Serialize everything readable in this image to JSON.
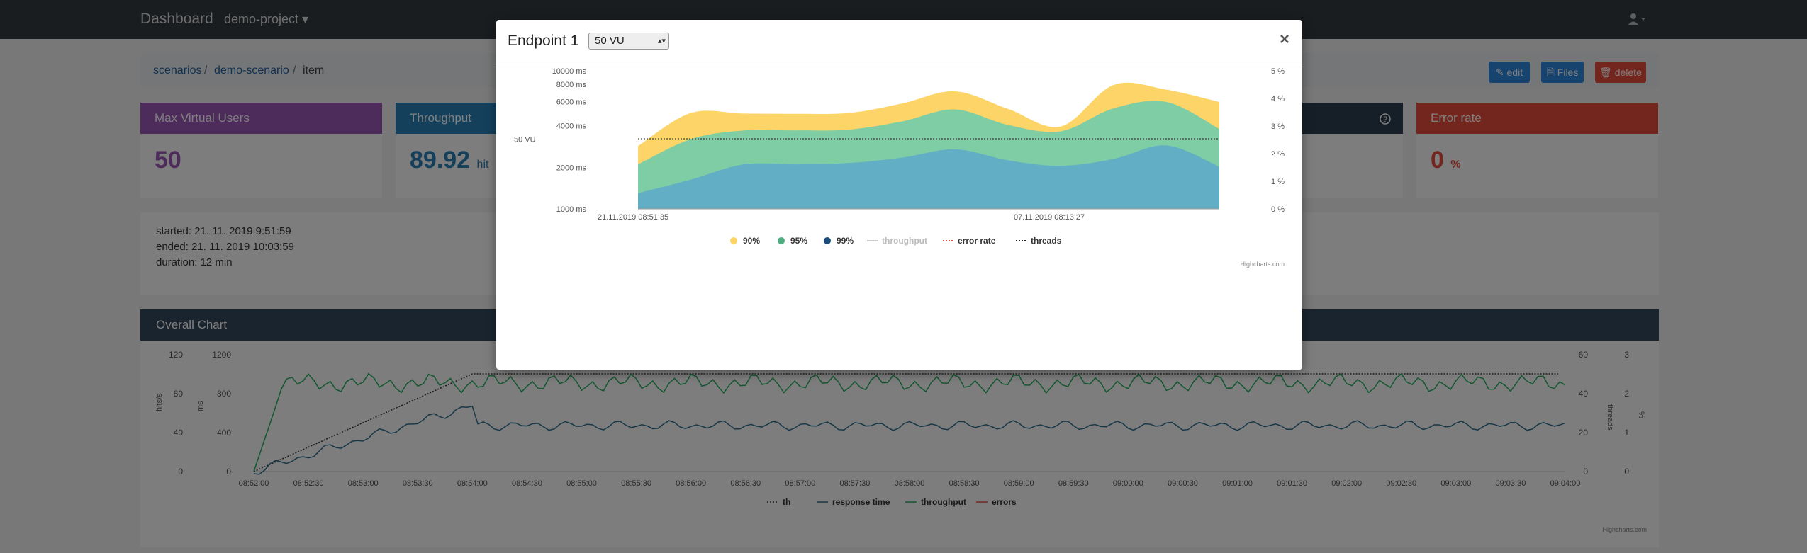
{
  "navbar": {
    "brand": "Dashboard",
    "project": "demo-project ▾",
    "user_icon": "user-icon"
  },
  "breadcrumb": {
    "items": [
      "scenarios",
      "demo-scenario",
      "item"
    ],
    "separator": "/"
  },
  "actions": {
    "edit": "✎ edit",
    "files": "🗎 Files",
    "delete": "🗑 delete"
  },
  "stats": {
    "max_vu": {
      "label": "Max Virtual Users",
      "value": "50",
      "color": "#9b59b6"
    },
    "throughput": {
      "label": "Throughput",
      "value": "89.92",
      "unit": "hit",
      "color": "#2980b9"
    },
    "error_rate": {
      "label": "Error rate",
      "value": "0",
      "unit": "%",
      "color": "#e74c3c"
    }
  },
  "info": {
    "started": "started:  21. 11. 2019 9:51:59",
    "ended": "ended:  21. 11. 2019 10:03:59",
    "duration": "duration:  12 min"
  },
  "overall": {
    "title": "Overall Chart",
    "legend": [
      "th",
      "response time",
      "throughput",
      "errors"
    ],
    "time_labels": [
      "08:52:00",
      "08:52:30",
      "08:53:00",
      "08:53:30",
      "08:54:00",
      "08:54:30",
      "08:55:00",
      "08:55:30",
      "08:56:00",
      "08:56:30",
      "08:57:00",
      "08:57:30",
      "08:58:00",
      "08:58:30",
      "08:59:00",
      "08:59:30",
      "09:00:00",
      "09:00:30",
      "09:01:00",
      "09:01:30",
      "09:02:00",
      "09:02:30",
      "09:03:00",
      "09:03:30",
      "09:04:00"
    ],
    "hits_ticks": [
      "120",
      "80",
      "40",
      "0"
    ],
    "ms_ticks": [
      "1200",
      "800",
      "400",
      "0"
    ],
    "threads_ticks": [
      "60",
      "40",
      "20",
      "0"
    ],
    "pct_ticks": [
      "3",
      "2",
      "1",
      "0"
    ],
    "axis_hits": "hits/s",
    "axis_ms": "ms",
    "axis_threads": "threads",
    "axis_pct": "%",
    "credit": "Highcharts.com"
  },
  "modal": {
    "title": "Endpoint 1",
    "select_value": "50 VU",
    "close": "×",
    "credit": "Highcharts.com"
  },
  "chart_data": {
    "type": "area",
    "title": "",
    "y_left_ticks": [
      "10000 ms",
      "8000 ms",
      "6000 ms",
      "4000 ms",
      "2000 ms",
      "1000 ms"
    ],
    "y_right_ticks": [
      "5 %",
      "4 %",
      "3 %",
      "2 %",
      "1 %",
      "0 %"
    ],
    "x_tick_labels": [
      "21.11.2019 08:51:35",
      "07.11.2019 08:13:27"
    ],
    "plotline_label": "50 VU",
    "ylim_ms": [
      1000,
      10000
    ],
    "y_scale": "log",
    "legend": [
      "90%",
      "95%",
      "99%",
      "throughput",
      "error rate",
      "threads"
    ],
    "series": [
      {
        "name": "90%",
        "color": "#fdd467",
        "values": [
          2850,
          4950,
          4900,
          4880,
          4950,
          5800,
          7100,
          5300,
          3950,
          7900,
          7300,
          5950
        ]
      },
      {
        "name": "95%",
        "color": "#7fcda4",
        "values": [
          2100,
          3200,
          3700,
          3700,
          3750,
          4300,
          5250,
          4050,
          3650,
          5350,
          5950,
          3800
        ]
      },
      {
        "name": "99%",
        "color": "#62aec4",
        "values": [
          1300,
          1630,
          2100,
          2100,
          2150,
          2350,
          2700,
          2250,
          2050,
          2300,
          2880,
          2020
        ]
      },
      {
        "name": "threads",
        "color": "#333333",
        "values": [
          3200,
          3200,
          3200,
          3200,
          3200,
          3200,
          3200,
          3200,
          3200,
          3200,
          3200,
          3200
        ]
      }
    ]
  }
}
